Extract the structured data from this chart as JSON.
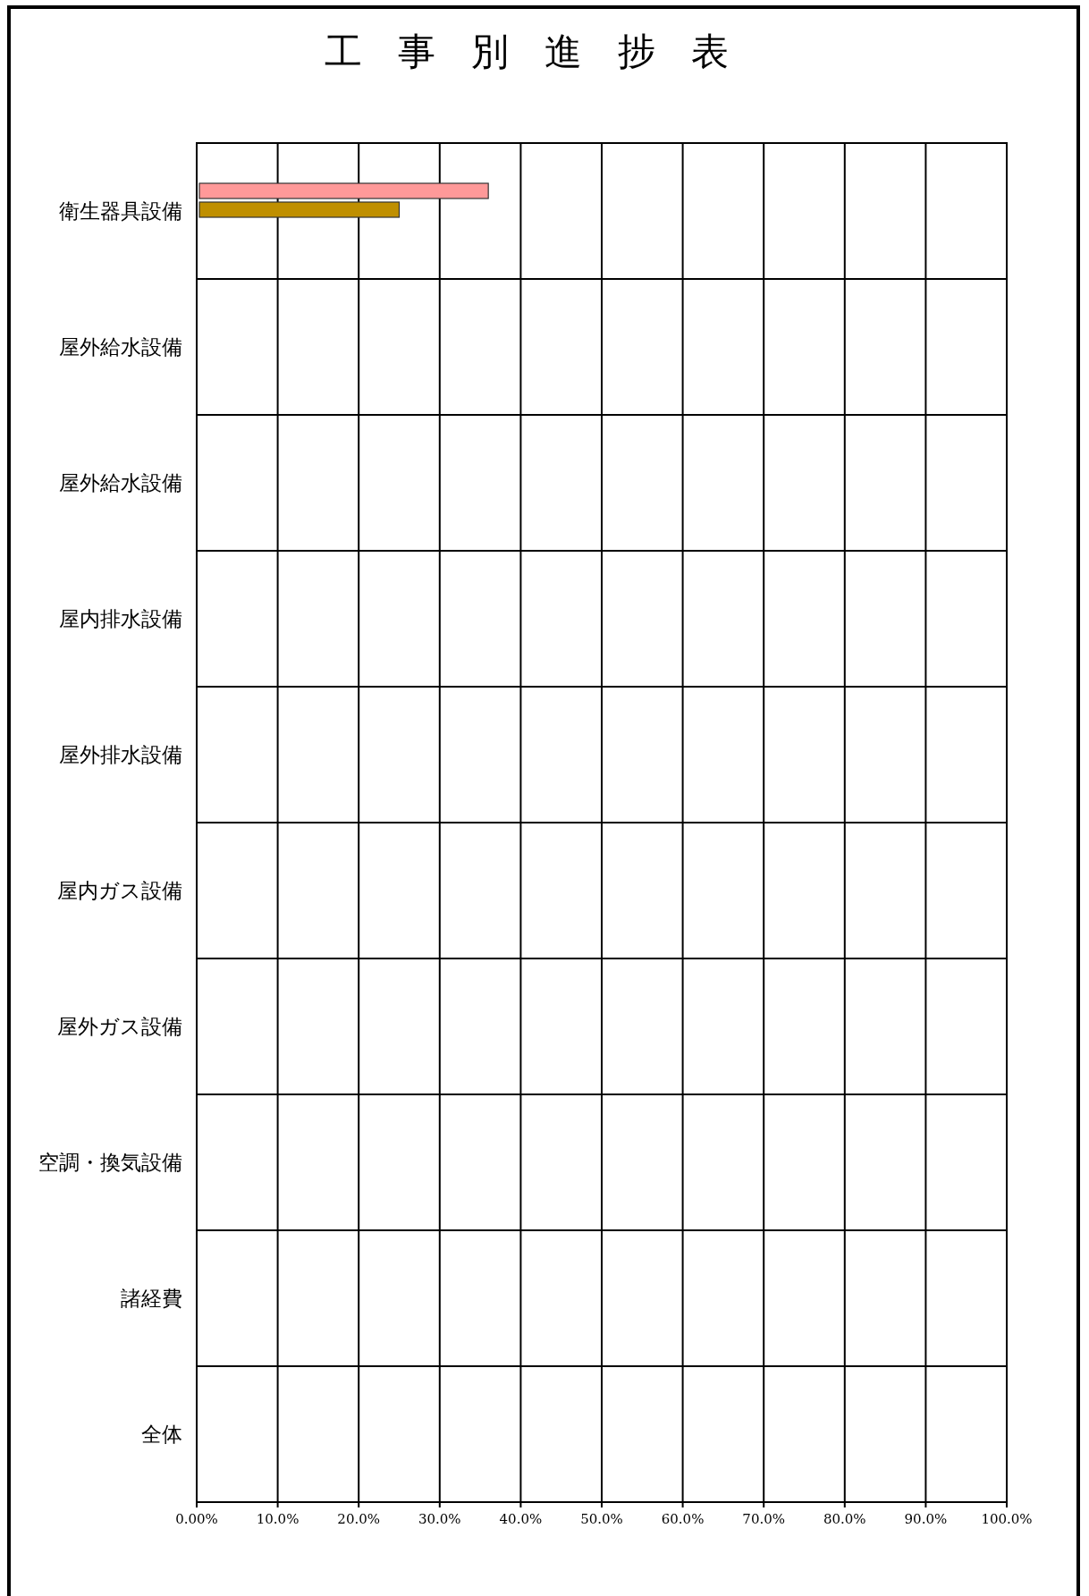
{
  "chart_data": {
    "type": "bar",
    "orientation": "horizontal",
    "title": "工事別進捗表",
    "categories": [
      "衛生器具設備",
      "屋外給水設備",
      "屋外給水設備",
      "屋内排水設備",
      "屋外排水設備",
      "屋内ガス設備",
      "屋外ガス設備",
      "空調・換気設備",
      "諸経費",
      "全体"
    ],
    "series": [
      {
        "color": "#ff9999",
        "values": [
          36,
          null,
          null,
          null,
          null,
          null,
          null,
          null,
          null,
          null
        ]
      },
      {
        "color": "#bf8f00",
        "values": [
          25,
          null,
          null,
          null,
          null,
          null,
          null,
          null,
          null,
          null
        ]
      }
    ],
    "xlim": [
      0,
      100
    ],
    "xticks": [
      {
        "value": 0,
        "label": "0.00%"
      },
      {
        "value": 10,
        "label": "10.0%"
      },
      {
        "value": 20,
        "label": "20.0%"
      },
      {
        "value": 30,
        "label": "30.0%"
      },
      {
        "value": 40,
        "label": "40.0%"
      },
      {
        "value": 50,
        "label": "50.0%"
      },
      {
        "value": 60,
        "label": "60.0%"
      },
      {
        "value": 70,
        "label": "70.0%"
      },
      {
        "value": 80,
        "label": "80.0%"
      },
      {
        "value": 90,
        "label": "90.0%"
      },
      {
        "value": 100,
        "label": "100.0%"
      }
    ],
    "grid": true
  }
}
